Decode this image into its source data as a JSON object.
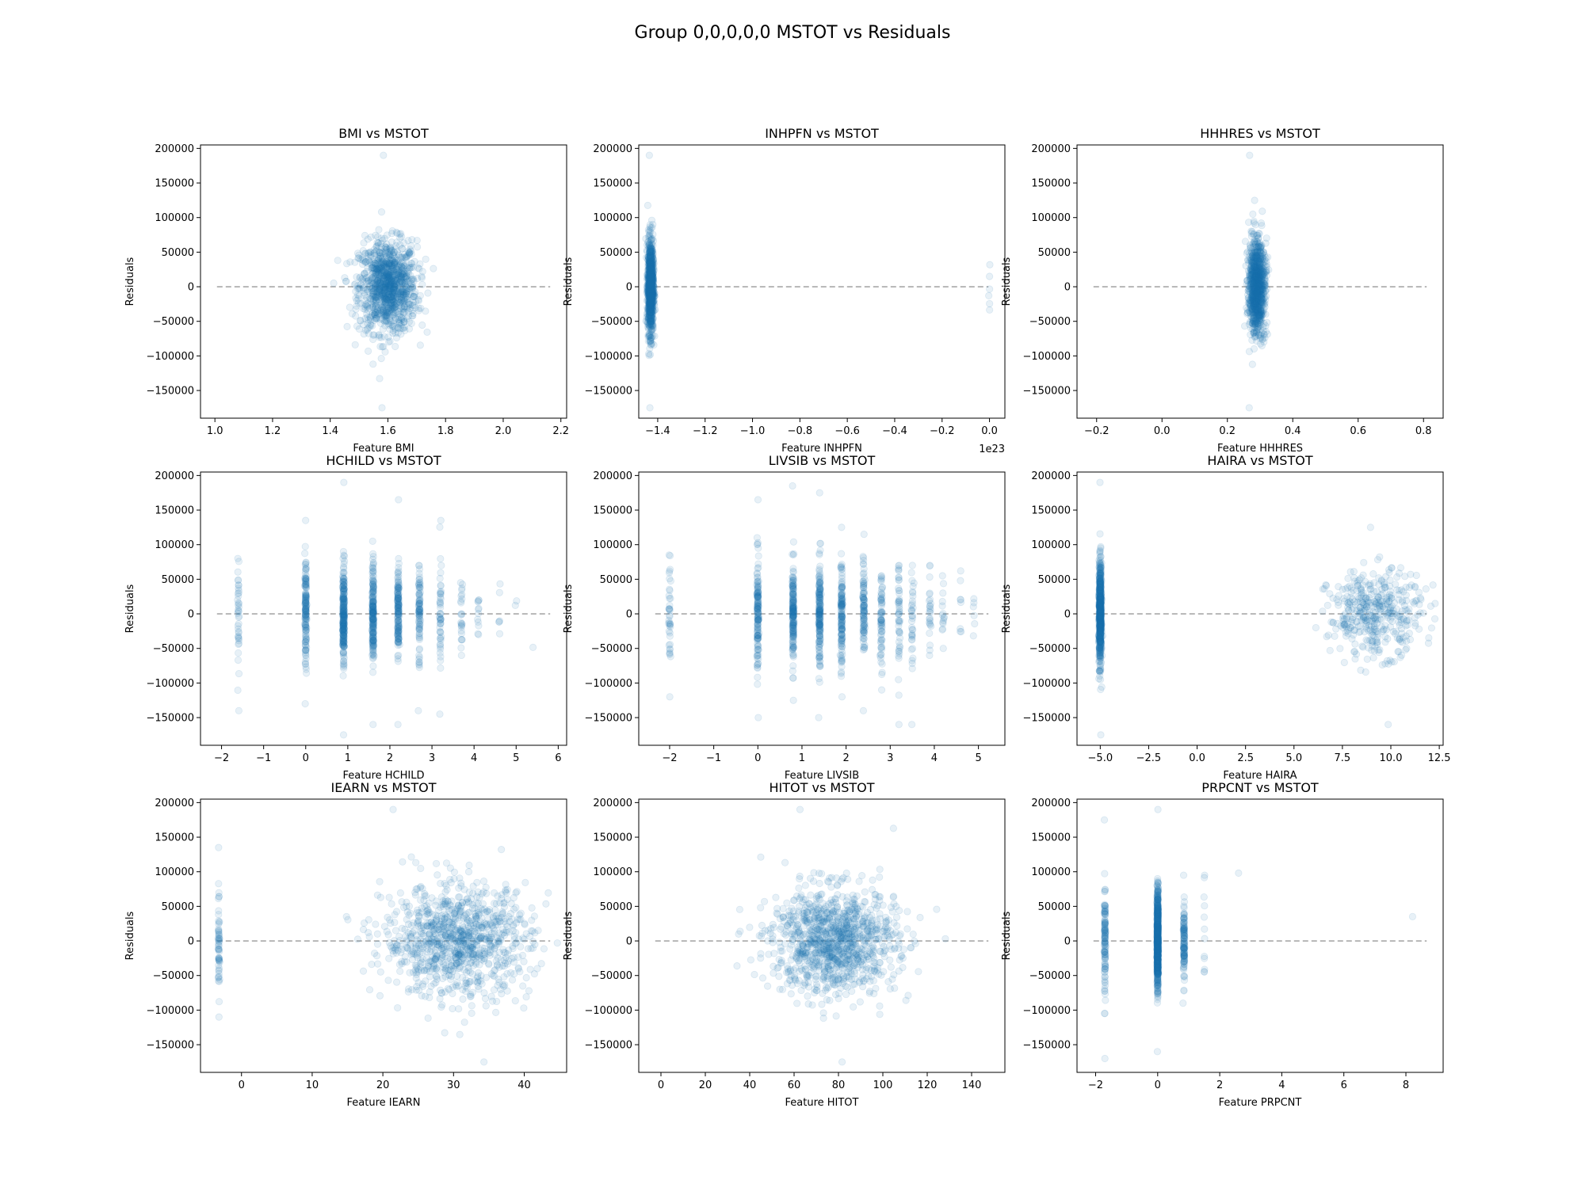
{
  "figure": {
    "title": "Group 0,0,0,0,0 MSTOT vs Residuals",
    "point_color": "#1f77b4",
    "point_alpha": 0.1,
    "zero_line_color": "#999999"
  },
  "chart_data": [
    {
      "type": "scatter",
      "title": "BMI vs MSTOT",
      "xlabel": "Feature BMI",
      "ylabel": "Residuals",
      "xlim": [
        0.95,
        2.22
      ],
      "ylim": [
        -190000,
        205000
      ],
      "xticks": [
        1.0,
        1.2,
        1.4,
        1.6,
        1.8,
        2.0,
        2.2
      ],
      "xtick_labels": [
        "1.0",
        "1.2",
        "1.4",
        "1.6",
        "1.8",
        "2.0",
        "2.2"
      ],
      "yticks": [
        -150000,
        -100000,
        -50000,
        0,
        50000,
        100000,
        150000,
        200000
      ],
      "ytick_labels": [
        "−150000",
        "−100000",
        "−50000",
        "0",
        "50000",
        "100000",
        "150000",
        "200000"
      ],
      "zero_line": 0,
      "offset_label": "",
      "clusters": [
        {
          "x_values": [
            1.6
          ],
          "x_spread": 0.05,
          "count": 1100,
          "y_sd": 33000,
          "y_min": -175000,
          "y_max": 190000
        }
      ]
    },
    {
      "type": "scatter",
      "title": "INHPFN vs MSTOT",
      "xlabel": "Feature INHPFN",
      "ylabel": "Residuals",
      "xlim": [
        -1.48,
        0.065
      ],
      "ylim": [
        -190000,
        205000
      ],
      "xticks": [
        -1.4,
        -1.2,
        -1.0,
        -0.8,
        -0.6,
        -0.4,
        -0.2,
        0.0
      ],
      "xtick_labels": [
        "−1.4",
        "−1.2",
        "−1.0",
        "−0.8",
        "−0.6",
        "−0.4",
        "−0.2",
        "0.0"
      ],
      "yticks": [
        -150000,
        -100000,
        -50000,
        0,
        50000,
        100000,
        150000,
        200000
      ],
      "ytick_labels": [
        "−150000",
        "−100000",
        "−50000",
        "0",
        "50000",
        "100000",
        "150000",
        "200000"
      ],
      "zero_line": 0,
      "offset_label": "1e23",
      "clusters": [
        {
          "x_values": [
            -1.43
          ],
          "x_spread": 0.006,
          "count": 1100,
          "y_sd": 33000,
          "y_min": -175000,
          "y_max": 190000
        },
        {
          "x_values": [
            0.0
          ],
          "x_spread": 0.002,
          "count": 6,
          "y_sd": 30000,
          "y_min": -35000,
          "y_max": 55000
        }
      ]
    },
    {
      "type": "scatter",
      "title": "HHHRES vs MSTOT",
      "xlabel": "Feature HHHRES",
      "ylabel": "Residuals",
      "xlim": [
        -0.26,
        0.86
      ],
      "ylim": [
        -190000,
        205000
      ],
      "xticks": [
        -0.2,
        0.0,
        0.2,
        0.4,
        0.6,
        0.8
      ],
      "xtick_labels": [
        "−0.2",
        "0.0",
        "0.2",
        "0.4",
        "0.6",
        "0.8"
      ],
      "yticks": [
        -150000,
        -100000,
        -50000,
        0,
        50000,
        100000,
        150000,
        200000
      ],
      "ytick_labels": [
        "−150000",
        "−100000",
        "−50000",
        "0",
        "50000",
        "100000",
        "150000",
        "200000"
      ],
      "zero_line": 0,
      "offset_label": "",
      "clusters": [
        {
          "x_values": [
            0.29
          ],
          "x_spread": 0.012,
          "count": 1100,
          "y_sd": 33000,
          "y_min": -175000,
          "y_max": 190000
        }
      ]
    },
    {
      "type": "scatter",
      "title": "HCHILD vs MSTOT",
      "xlabel": "Feature HCHILD",
      "ylabel": "Residuals",
      "xlim": [
        -2.5,
        6.2
      ],
      "ylim": [
        -190000,
        205000
      ],
      "xticks": [
        -2,
        -1,
        0,
        1,
        2,
        3,
        4,
        5,
        6
      ],
      "xtick_labels": [
        "−2",
        "−1",
        "0",
        "1",
        "2",
        "3",
        "4",
        "5",
        "6"
      ],
      "yticks": [
        -150000,
        -100000,
        -50000,
        0,
        50000,
        100000,
        150000,
        200000
      ],
      "ytick_labels": [
        "−150000",
        "−100000",
        "−50000",
        "0",
        "50000",
        "100000",
        "150000",
        "200000"
      ],
      "zero_line": 0,
      "offset_label": "",
      "clusters": [
        {
          "x_values": [
            -1.6
          ],
          "x_spread": 0.01,
          "count": 40,
          "y_sd": 40000,
          "y_min": -140000,
          "y_max": 80000
        },
        {
          "x_values": [
            0.0
          ],
          "x_spread": 0.01,
          "count": 150,
          "y_sd": 38000,
          "y_min": -130000,
          "y_max": 135000
        },
        {
          "x_values": [
            0.9
          ],
          "x_spread": 0.01,
          "count": 250,
          "y_sd": 35000,
          "y_min": -175000,
          "y_max": 190000
        },
        {
          "x_values": [
            1.6
          ],
          "x_spread": 0.01,
          "count": 200,
          "y_sd": 35000,
          "y_min": -160000,
          "y_max": 105000
        },
        {
          "x_values": [
            2.2
          ],
          "x_spread": 0.01,
          "count": 150,
          "y_sd": 33000,
          "y_min": -160000,
          "y_max": 165000
        },
        {
          "x_values": [
            2.7
          ],
          "x_spread": 0.01,
          "count": 90,
          "y_sd": 35000,
          "y_min": -140000,
          "y_max": 70000
        },
        {
          "x_values": [
            3.2
          ],
          "x_spread": 0.01,
          "count": 50,
          "y_sd": 40000,
          "y_min": -145000,
          "y_max": 135000
        },
        {
          "x_values": [
            3.7
          ],
          "x_spread": 0.01,
          "count": 25,
          "y_sd": 30000,
          "y_min": -60000,
          "y_max": 45000
        },
        {
          "x_values": [
            4.1
          ],
          "x_spread": 0.01,
          "count": 12,
          "y_sd": 20000,
          "y_min": -30000,
          "y_max": 20000
        },
        {
          "x_values": [
            4.6
          ],
          "x_spread": 0.01,
          "count": 6,
          "y_sd": 30000,
          "y_min": -70000,
          "y_max": 50000
        },
        {
          "x_values": [
            5.0
          ],
          "x_spread": 0.01,
          "count": 2,
          "y_sd": 50000,
          "y_min": -90000,
          "y_max": 20000
        },
        {
          "x_values": [
            5.4
          ],
          "x_spread": 0.01,
          "count": 1,
          "y_sd": 10000,
          "y_min": -50000,
          "y_max": -48000
        }
      ]
    },
    {
      "type": "scatter",
      "title": "LIVSIB vs MSTOT",
      "xlabel": "Feature LIVSIB",
      "ylabel": "Residuals",
      "xlim": [
        -2.7,
        5.6
      ],
      "ylim": [
        -190000,
        205000
      ],
      "xticks": [
        -2,
        -1,
        0,
        1,
        2,
        3,
        4,
        5
      ],
      "xtick_labels": [
        "−2",
        "−1",
        "0",
        "1",
        "2",
        "3",
        "4",
        "5"
      ],
      "yticks": [
        -150000,
        -100000,
        -50000,
        0,
        50000,
        100000,
        150000,
        200000
      ],
      "ytick_labels": [
        "−150000",
        "−100000",
        "−50000",
        "0",
        "50000",
        "100000",
        "150000",
        "200000"
      ],
      "zero_line": 0,
      "offset_label": "",
      "clusters": [
        {
          "x_values": [
            -2.0
          ],
          "x_spread": 0.01,
          "count": 40,
          "y_sd": 35000,
          "y_min": -120000,
          "y_max": 85000
        },
        {
          "x_values": [
            0.0
          ],
          "x_spread": 0.01,
          "count": 150,
          "y_sd": 40000,
          "y_min": -150000,
          "y_max": 165000
        },
        {
          "x_values": [
            0.8
          ],
          "x_spread": 0.01,
          "count": 180,
          "y_sd": 35000,
          "y_min": -125000,
          "y_max": 185000
        },
        {
          "x_values": [
            1.4
          ],
          "x_spread": 0.01,
          "count": 180,
          "y_sd": 35000,
          "y_min": -150000,
          "y_max": 175000
        },
        {
          "x_values": [
            1.9
          ],
          "x_spread": 0.01,
          "count": 140,
          "y_sd": 35000,
          "y_min": -120000,
          "y_max": 125000
        },
        {
          "x_values": [
            2.4
          ],
          "x_spread": 0.01,
          "count": 100,
          "y_sd": 35000,
          "y_min": -140000,
          "y_max": 115000
        },
        {
          "x_values": [
            2.8
          ],
          "x_spread": 0.01,
          "count": 70,
          "y_sd": 35000,
          "y_min": -110000,
          "y_max": 55000
        },
        {
          "x_values": [
            3.2
          ],
          "x_spread": 0.01,
          "count": 50,
          "y_sd": 40000,
          "y_min": -160000,
          "y_max": 70000
        },
        {
          "x_values": [
            3.5
          ],
          "x_spread": 0.01,
          "count": 35,
          "y_sd": 35000,
          "y_min": -160000,
          "y_max": 70000
        },
        {
          "x_values": [
            3.9
          ],
          "x_spread": 0.01,
          "count": 25,
          "y_sd": 30000,
          "y_min": -60000,
          "y_max": 70000
        },
        {
          "x_values": [
            4.2
          ],
          "x_spread": 0.01,
          "count": 15,
          "y_sd": 25000,
          "y_min": -50000,
          "y_max": 55000
        },
        {
          "x_values": [
            4.6
          ],
          "x_spread": 0.01,
          "count": 8,
          "y_sd": 30000,
          "y_min": -95000,
          "y_max": 70000
        },
        {
          "x_values": [
            4.9
          ],
          "x_spread": 0.01,
          "count": 6,
          "y_sd": 25000,
          "y_min": -55000,
          "y_max": 40000
        }
      ]
    },
    {
      "type": "scatter",
      "title": "HAIRA vs MSTOT",
      "xlabel": "Feature HAIRA",
      "ylabel": "Residuals",
      "xlim": [
        -6.2,
        12.7
      ],
      "ylim": [
        -190000,
        205000
      ],
      "xticks": [
        -5.0,
        -2.5,
        0.0,
        2.5,
        5.0,
        7.5,
        10.0,
        12.5
      ],
      "xtick_labels": [
        "−5.0",
        "−2.5",
        "0.0",
        "2.5",
        "5.0",
        "7.5",
        "10.0",
        "12.5"
      ],
      "yticks": [
        -150000,
        -100000,
        -50000,
        0,
        50000,
        100000,
        150000,
        200000
      ],
      "ytick_labels": [
        "−150000",
        "−100000",
        "−50000",
        "0",
        "50000",
        "100000",
        "150000",
        "200000"
      ],
      "zero_line": 0,
      "offset_label": "",
      "clusters": [
        {
          "x_values": [
            -5.0
          ],
          "x_spread": 0.03,
          "count": 700,
          "y_sd": 35000,
          "y_min": -175000,
          "y_max": 190000
        },
        {
          "x_values": [
            9.2
          ],
          "x_spread": 1.2,
          "count": 420,
          "y_sd": 30000,
          "y_min": -160000,
          "y_max": 125000
        }
      ]
    },
    {
      "type": "scatter",
      "title": "IEARN vs MSTOT",
      "xlabel": "Feature IEARN",
      "ylabel": "Residuals",
      "xlim": [
        -5.8,
        46.0
      ],
      "ylim": [
        -190000,
        205000
      ],
      "xticks": [
        0,
        10,
        20,
        30,
        40
      ],
      "xtick_labels": [
        "0",
        "10",
        "20",
        "30",
        "40"
      ],
      "yticks": [
        -150000,
        -100000,
        -50000,
        0,
        50000,
        100000,
        150000,
        200000
      ],
      "ytick_labels": [
        "−150000",
        "−100000",
        "−50000",
        "0",
        "50000",
        "100000",
        "150000",
        "200000"
      ],
      "zero_line": 0,
      "offset_label": "",
      "clusters": [
        {
          "x_values": [
            -3.2
          ],
          "x_spread": 0.05,
          "count": 60,
          "y_sd": 35000,
          "y_min": -110000,
          "y_max": 135000
        },
        {
          "x_values": [
            30.5
          ],
          "x_spread": 5.2,
          "count": 1000,
          "y_sd": 40000,
          "y_min": -175000,
          "y_max": 190000
        }
      ]
    },
    {
      "type": "scatter",
      "title": "HITOT vs MSTOT",
      "xlabel": "Feature HITOT",
      "ylabel": "Residuals",
      "xlim": [
        -10,
        155
      ],
      "ylim": [
        -190000,
        205000
      ],
      "xticks": [
        0,
        20,
        40,
        60,
        80,
        100,
        120,
        140
      ],
      "xtick_labels": [
        "0",
        "20",
        "40",
        "60",
        "80",
        "100",
        "120",
        "140"
      ],
      "yticks": [
        -150000,
        -100000,
        -50000,
        0,
        50000,
        100000,
        150000,
        200000
      ],
      "ytick_labels": [
        "−150000",
        "−100000",
        "−50000",
        "0",
        "50000",
        "100000",
        "150000",
        "200000"
      ],
      "zero_line": 0,
      "offset_label": "",
      "clusters": [
        {
          "x_values": [
            78
          ],
          "x_spread": 14,
          "count": 1100,
          "y_sd": 38000,
          "y_min": -175000,
          "y_max": 190000
        }
      ]
    },
    {
      "type": "scatter",
      "title": "PRPCNT vs MSTOT",
      "xlabel": "Feature PRPCNT",
      "ylabel": "Residuals",
      "xlim": [
        -2.6,
        9.2
      ],
      "ylim": [
        -190000,
        205000
      ],
      "xticks": [
        -2,
        0,
        2,
        4,
        6,
        8
      ],
      "xtick_labels": [
        "−2",
        "0",
        "2",
        "4",
        "6",
        "8"
      ],
      "yticks": [
        -150000,
        -100000,
        -50000,
        0,
        50000,
        100000,
        150000,
        200000
      ],
      "ytick_labels": [
        "−150000",
        "−100000",
        "−50000",
        "0",
        "50000",
        "100000",
        "150000",
        "200000"
      ],
      "zero_line": 0,
      "offset_label": "",
      "clusters": [
        {
          "x_values": [
            -1.7
          ],
          "x_spread": 0.01,
          "count": 120,
          "y_sd": 38000,
          "y_min": -170000,
          "y_max": 175000
        },
        {
          "x_values": [
            0.0
          ],
          "x_spread": 0.01,
          "count": 800,
          "y_sd": 35000,
          "y_min": -160000,
          "y_max": 190000
        },
        {
          "x_values": [
            0.85
          ],
          "x_spread": 0.01,
          "count": 120,
          "y_sd": 30000,
          "y_min": -90000,
          "y_max": 95000
        },
        {
          "x_values": [
            1.5
          ],
          "x_spread": 0.01,
          "count": 12,
          "y_sd": 35000,
          "y_min": -45000,
          "y_max": 95000
        },
        {
          "x_values": [
            2.6
          ],
          "x_spread": 0.01,
          "count": 1,
          "y_sd": 1000,
          "y_min": 98000,
          "y_max": 100000
        },
        {
          "x_values": [
            8.2
          ],
          "x_spread": 0.01,
          "count": 1,
          "y_sd": 1000,
          "y_min": 35000,
          "y_max": 37000
        }
      ]
    }
  ]
}
